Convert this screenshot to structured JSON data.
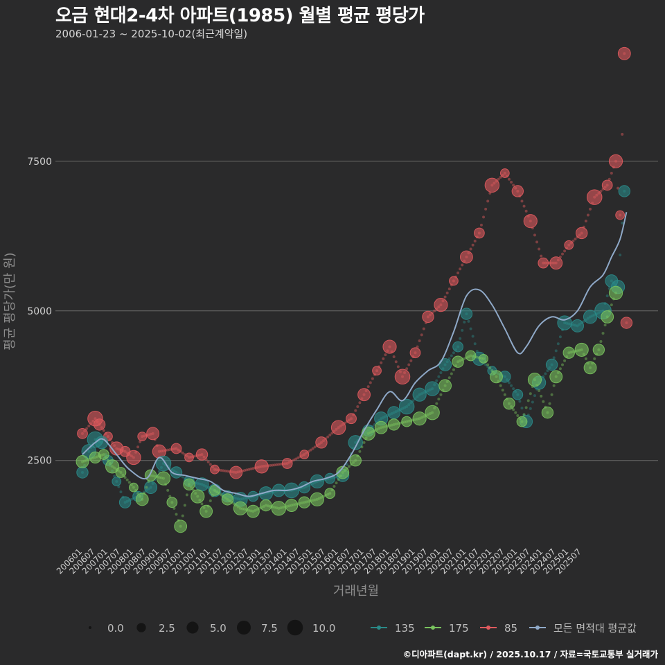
{
  "header": {
    "title": "오금 현대2-4차 아파트(1985) 월별 평균 평당가",
    "subtitle": "2006-01-23 ~ 2025-10-02(최근계약일)"
  },
  "caption": "©디아파트(dapt.kr) / 2025.10.17 / 자료=국토교통부 실거래가",
  "colors": {
    "background": "#2a2a2b",
    "grid": "#6b6b6b",
    "s135": "#2a8a88",
    "s175": "#79c35e",
    "s85": "#e05a5e",
    "avg": "#8fa9c8"
  },
  "chart_data": {
    "type": "scatter",
    "title": "오금 현대2-4차 아파트(1985) 월별 평균 평당가",
    "xlabel": "거래년월",
    "ylabel": "평균 평당가(만 원)",
    "x_tick_labels": [
      "200601",
      "200607",
      "200701",
      "200707",
      "200801",
      "200807",
      "200901",
      "200907",
      "201001",
      "201007",
      "201101",
      "201107",
      "201201",
      "201207",
      "201301",
      "201307",
      "201401",
      "201407",
      "201501",
      "201507",
      "201601",
      "201607",
      "201701",
      "201707",
      "201801",
      "201807",
      "201901",
      "201907",
      "202001",
      "202007",
      "202101",
      "202107",
      "202201",
      "202207",
      "202301",
      "202307",
      "202401",
      "202407",
      "202501",
      "202507"
    ],
    "ylim": [
      1050,
      9500
    ],
    "y_ticks": [
      2500,
      5000,
      7500
    ],
    "y_tick_labels": [
      "2500",
      "5000",
      "7500"
    ],
    "size_legend": {
      "labels": [
        "0.0",
        "2.5",
        "5.0",
        "7.5",
        "10.0"
      ],
      "values": [
        0,
        2.5,
        5,
        7.5,
        10
      ]
    },
    "color_legend": [
      "135",
      "175",
      "85",
      "모든 면적대 평균값"
    ],
    "series": [
      {
        "name": "85",
        "anchors": [
          [
            0,
            2950
          ],
          [
            6,
            3200
          ],
          [
            8,
            3100
          ],
          [
            12,
            2900
          ],
          [
            16,
            2700
          ],
          [
            20,
            2650
          ],
          [
            24,
            2550
          ],
          [
            28,
            2900
          ],
          [
            33,
            2950
          ],
          [
            36,
            2650
          ],
          [
            44,
            2700
          ],
          [
            50,
            2550
          ],
          [
            56,
            2600
          ],
          [
            62,
            2350
          ],
          [
            72,
            2300
          ],
          [
            84,
            2400
          ],
          [
            96,
            2450
          ],
          [
            104,
            2600
          ],
          [
            112,
            2800
          ],
          [
            120,
            3050
          ],
          [
            126,
            3200
          ],
          [
            132,
            3600
          ],
          [
            138,
            4000
          ],
          [
            144,
            4400
          ],
          [
            150,
            3900
          ],
          [
            156,
            4300
          ],
          [
            162,
            4900
          ],
          [
            168,
            5100
          ],
          [
            174,
            5500
          ],
          [
            180,
            5900
          ],
          [
            186,
            6300
          ],
          [
            192,
            7100
          ],
          [
            198,
            7300
          ],
          [
            204,
            7000
          ],
          [
            210,
            6500
          ],
          [
            216,
            5800
          ],
          [
            222,
            5800
          ],
          [
            228,
            6100
          ],
          [
            234,
            6300
          ],
          [
            240,
            6900
          ],
          [
            246,
            7100
          ],
          [
            250,
            7500
          ],
          [
            252,
            6600
          ],
          [
            254,
            9300
          ],
          [
            255,
            4800
          ]
        ],
        "sizes": [
          3,
          8,
          4,
          2,
          6,
          3,
          7,
          2,
          5,
          6,
          3,
          2,
          4,
          2,
          5,
          6,
          3,
          2,
          4,
          7,
          3,
          5,
          2,
          6,
          8,
          3,
          4,
          6,
          2,
          5,
          3,
          7,
          2,
          4,
          6,
          3,
          5,
          2,
          4,
          8,
          3,
          6,
          2,
          5,
          4
        ]
      },
      {
        "name": "135",
        "anchors": [
          [
            0,
            2300
          ],
          [
            3,
            2650
          ],
          [
            6,
            2850
          ],
          [
            9,
            2800
          ],
          [
            12,
            2500
          ],
          [
            16,
            2150
          ],
          [
            20,
            1800
          ],
          [
            26,
            1900
          ],
          [
            32,
            2050
          ],
          [
            38,
            2450
          ],
          [
            44,
            2300
          ],
          [
            50,
            2150
          ],
          [
            56,
            2100
          ],
          [
            62,
            2000
          ],
          [
            68,
            1900
          ],
          [
            74,
            1850
          ],
          [
            80,
            1900
          ],
          [
            86,
            1950
          ],
          [
            92,
            2000
          ],
          [
            98,
            2000
          ],
          [
            104,
            2050
          ],
          [
            110,
            2150
          ],
          [
            116,
            2200
          ],
          [
            122,
            2250
          ],
          [
            128,
            2800
          ],
          [
            134,
            3000
          ],
          [
            140,
            3200
          ],
          [
            146,
            3300
          ],
          [
            152,
            3400
          ],
          [
            158,
            3600
          ],
          [
            164,
            3700
          ],
          [
            170,
            4100
          ],
          [
            176,
            4400
          ],
          [
            180,
            4950
          ],
          [
            186,
            4200
          ],
          [
            192,
            4000
          ],
          [
            198,
            3900
          ],
          [
            204,
            3600
          ],
          [
            208,
            3150
          ],
          [
            214,
            3800
          ],
          [
            220,
            4100
          ],
          [
            226,
            4800
          ],
          [
            232,
            4750
          ],
          [
            238,
            4900
          ],
          [
            244,
            5000
          ],
          [
            248,
            5500
          ],
          [
            251,
            5400
          ],
          [
            254,
            7000
          ]
        ],
        "sizes": [
          4,
          7,
          9,
          5,
          3,
          2,
          4,
          3,
          5,
          8,
          4,
          3,
          6,
          5,
          4,
          7,
          3,
          6,
          5,
          8,
          4,
          6,
          3,
          5,
          7,
          4,
          6,
          5,
          8,
          6,
          7,
          5,
          3,
          4,
          6,
          2,
          4,
          3,
          5,
          6,
          4,
          7,
          5,
          6,
          10,
          5,
          6,
          4
        ]
      },
      {
        "name": "175",
        "anchors": [
          [
            0,
            2480
          ],
          [
            6,
            2550
          ],
          [
            10,
            2600
          ],
          [
            14,
            2400
          ],
          [
            18,
            2300
          ],
          [
            24,
            2050
          ],
          [
            28,
            1850
          ],
          [
            32,
            2250
          ],
          [
            38,
            2200
          ],
          [
            42,
            1800
          ],
          [
            46,
            1400
          ],
          [
            50,
            2100
          ],
          [
            54,
            1900
          ],
          [
            58,
            1650
          ],
          [
            62,
            2000
          ],
          [
            68,
            1850
          ],
          [
            74,
            1700
          ],
          [
            80,
            1650
          ],
          [
            86,
            1750
          ],
          [
            92,
            1700
          ],
          [
            98,
            1750
          ],
          [
            104,
            1800
          ],
          [
            110,
            1850
          ],
          [
            116,
            1950
          ],
          [
            122,
            2300
          ],
          [
            128,
            2500
          ],
          [
            134,
            2950
          ],
          [
            140,
            3050
          ],
          [
            146,
            3100
          ],
          [
            152,
            3150
          ],
          [
            158,
            3200
          ],
          [
            164,
            3300
          ],
          [
            170,
            3750
          ],
          [
            176,
            4150
          ],
          [
            182,
            4250
          ],
          [
            188,
            4200
          ],
          [
            194,
            3900
          ],
          [
            200,
            3450
          ],
          [
            206,
            3150
          ],
          [
            212,
            3850
          ],
          [
            218,
            3300
          ],
          [
            222,
            3900
          ],
          [
            228,
            4300
          ],
          [
            234,
            4350
          ],
          [
            238,
            4050
          ],
          [
            242,
            4350
          ],
          [
            246,
            4900
          ],
          [
            250,
            5300
          ]
        ],
        "sizes": [
          5,
          4,
          3,
          6,
          3,
          2,
          5,
          4,
          6,
          3,
          5,
          4,
          6,
          5,
          3,
          4,
          6,
          5,
          4,
          7,
          5,
          4,
          6,
          3,
          5,
          4,
          6,
          5,
          4,
          3,
          6,
          7,
          5,
          4,
          3,
          2,
          5,
          4,
          3,
          6,
          4,
          5,
          4,
          6,
          5,
          4,
          5,
          6
        ]
      },
      {
        "name": "모든 면적대 평균값",
        "anchors": [
          [
            0,
            2600
          ],
          [
            6,
            2800
          ],
          [
            10,
            2850
          ],
          [
            16,
            2600
          ],
          [
            22,
            2350
          ],
          [
            30,
            2200
          ],
          [
            36,
            2550
          ],
          [
            42,
            2300
          ],
          [
            48,
            2250
          ],
          [
            54,
            2200
          ],
          [
            60,
            2150
          ],
          [
            66,
            2000
          ],
          [
            72,
            1950
          ],
          [
            78,
            1900
          ],
          [
            84,
            1950
          ],
          [
            90,
            2000
          ],
          [
            96,
            2000
          ],
          [
            102,
            2050
          ],
          [
            108,
            2150
          ],
          [
            114,
            2200
          ],
          [
            120,
            2300
          ],
          [
            126,
            2600
          ],
          [
            132,
            3000
          ],
          [
            138,
            3350
          ],
          [
            144,
            3650
          ],
          [
            150,
            3500
          ],
          [
            156,
            3800
          ],
          [
            162,
            4000
          ],
          [
            168,
            4150
          ],
          [
            174,
            4650
          ],
          [
            180,
            5250
          ],
          [
            186,
            5350
          ],
          [
            192,
            5100
          ],
          [
            198,
            4700
          ],
          [
            204,
            4300
          ],
          [
            208,
            4400
          ],
          [
            214,
            4750
          ],
          [
            220,
            4900
          ],
          [
            226,
            4850
          ],
          [
            232,
            5000
          ],
          [
            238,
            5400
          ],
          [
            244,
            5600
          ],
          [
            248,
            5900
          ],
          [
            252,
            6200
          ],
          [
            255,
            6650
          ]
        ]
      }
    ]
  }
}
